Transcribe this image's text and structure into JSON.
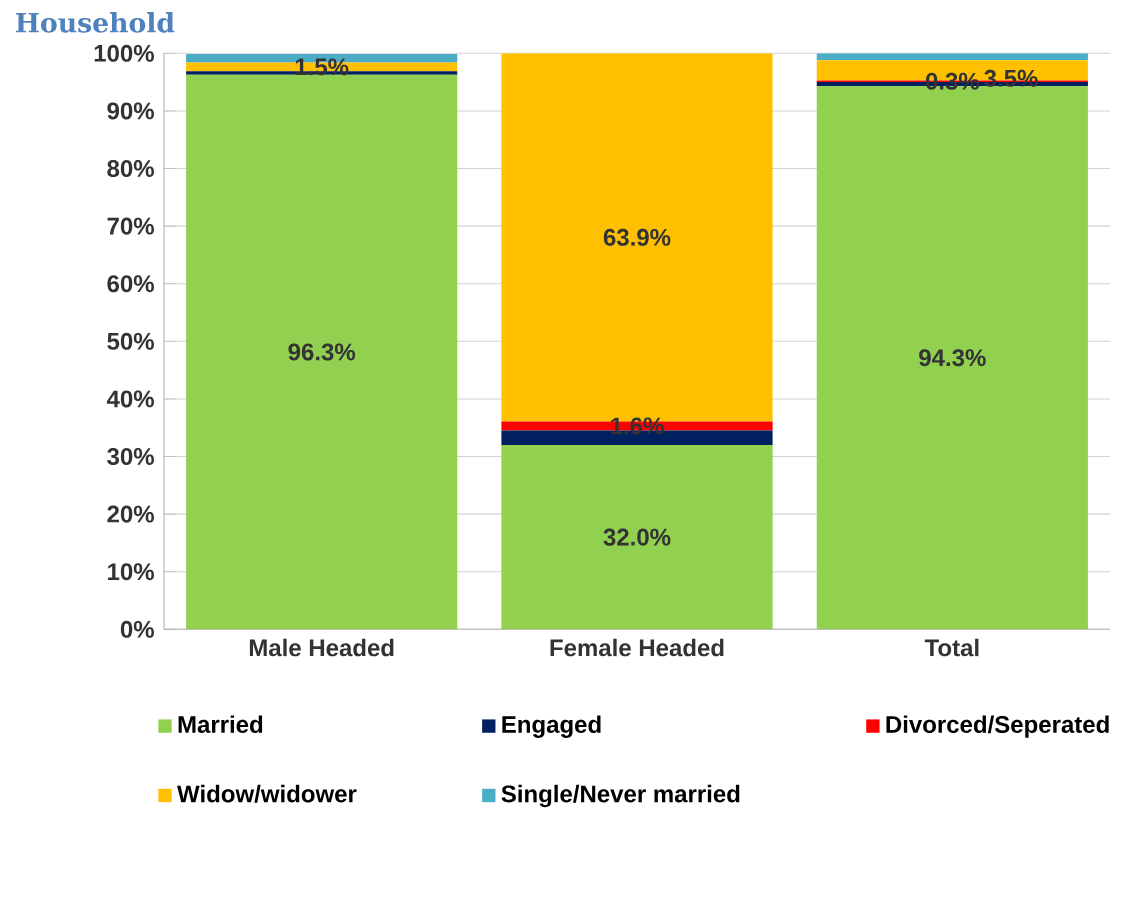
{
  "chart_data": {
    "type": "bar",
    "title": "Household",
    "stacked": true,
    "categories": [
      "Male Headed",
      "Female Headed",
      "Total"
    ],
    "series": [
      {
        "name": "Married",
        "color": "#92d050",
        "values": [
          96.3,
          32.0,
          94.3
        ],
        "value_labels": [
          "96.3%",
          "32.0%",
          "94.3%"
        ]
      },
      {
        "name": "Engaged",
        "color": "#002060",
        "values": [
          0.6,
          2.5,
          0.7
        ]
      },
      {
        "name": "Divorced/Seperated",
        "color": "#ff0000",
        "values": [
          null,
          1.6,
          0.3
        ],
        "value_labels": [
          null,
          "1.6%",
          "0.3%"
        ]
      },
      {
        "name": "Widow/widower",
        "color": "#ffc000",
        "values": [
          1.5,
          63.9,
          3.5
        ],
        "value_labels": [
          "1.5%",
          "63.9%",
          "3.5%"
        ]
      },
      {
        "name": "Single/Never married",
        "color": "#4bacc6",
        "values": [
          1.5,
          0.0,
          1.2
        ]
      }
    ],
    "ylim": [
      0,
      100
    ],
    "yticks": [
      {
        "value": 0,
        "label": "0%"
      },
      {
        "value": 10,
        "label": "10%"
      },
      {
        "value": 20,
        "label": "20%"
      },
      {
        "value": 30,
        "label": "30%"
      },
      {
        "value": 40,
        "label": "40%"
      },
      {
        "value": 50,
        "label": "50%"
      },
      {
        "value": 60,
        "label": "60%"
      },
      {
        "value": 70,
        "label": "70%"
      },
      {
        "value": 80,
        "label": "80%"
      },
      {
        "value": 90,
        "label": "90%"
      },
      {
        "value": 100,
        "label": "100%"
      }
    ],
    "grid": "y",
    "legend": "bottom"
  }
}
